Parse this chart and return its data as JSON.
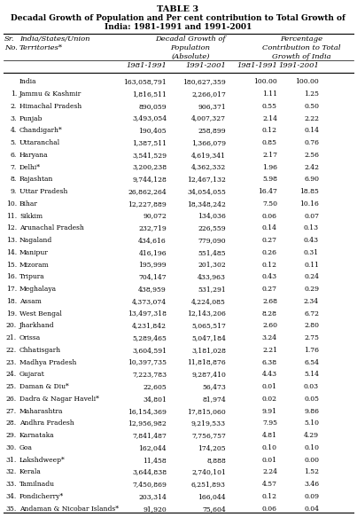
{
  "title_line1": "TABLE 3",
  "title_line2": "Decadal Growth of Population and Per cent contribution to Total Growth of",
  "title_line3": "India: 1981-1991 and 1991-2001",
  "sub_headers": [
    "1981-1991",
    "1991-2001",
    "1981-1991",
    "1991-2001"
  ],
  "rows": [
    [
      "",
      "India",
      "163,058,791",
      "180,627,359",
      "100.00",
      "100.00"
    ],
    [
      "1.",
      "Jammu & Kashmir",
      "1,816,511",
      "2,266,017",
      "1.11",
      "1.25"
    ],
    [
      "2.",
      "Himachal Pradesh",
      "890,059",
      "906,371",
      "0.55",
      "0.50"
    ],
    [
      "3.",
      "Punjab",
      "3,493,054",
      "4,007,327",
      "2.14",
      "2.22"
    ],
    [
      "4.",
      "Chandigarh*",
      "190,405",
      "258,899",
      "0.12",
      "0.14"
    ],
    [
      "5.",
      "Uttaranchal",
      "1,387,511",
      "1,366,079",
      "0.85",
      "0.76"
    ],
    [
      "6.",
      "Haryana",
      "3,541,529",
      "4,619,341",
      "2.17",
      "2.56"
    ],
    [
      "7.",
      "Delhi*",
      "3,200,238",
      "4,362,332",
      "1.96",
      "2.42"
    ],
    [
      "8.",
      "Rajashtan",
      "9,744,128",
      "12,467,132",
      "5.98",
      "6.90"
    ],
    [
      "9.",
      "Uttar Pradesh",
      "26,862,264",
      "34,054,055",
      "16.47",
      "18.85"
    ],
    [
      "10.",
      "Bihar",
      "12,227,889",
      "18,348,242",
      "7.50",
      "10.16"
    ],
    [
      "11.",
      "Sikkim",
      "90,072",
      "134,036",
      "0.06",
      "0.07"
    ],
    [
      "12.",
      "Arunachal Pradesh",
      "232,719",
      "226,559",
      "0.14",
      "0.13"
    ],
    [
      "13.",
      "Nagaland",
      "434,616",
      "779,090",
      "0.27",
      "0.43"
    ],
    [
      "14.",
      "Manipur",
      "416,196",
      "551,485",
      "0.26",
      "0.31"
    ],
    [
      "15.",
      "Mizoram",
      "195,999",
      "201,302",
      "0.12",
      "0.11"
    ],
    [
      "16.",
      "Tripura",
      "704,147",
      "433,963",
      "0.43",
      "0.24"
    ],
    [
      "17.",
      "Meghalaya",
      "438,959",
      "531,291",
      "0.27",
      "0.29"
    ],
    [
      "18.",
      "Assam",
      "4,373,074",
      "4,224,085",
      "2.68",
      "2.34"
    ],
    [
      "19.",
      "West Bengal",
      "13,497,318",
      "12,143,206",
      "8.28",
      "6.72"
    ],
    [
      "20.",
      "Jharkhand",
      "4,231,842",
      "5,065,517",
      "2.60",
      "2.80"
    ],
    [
      "21.",
      "Orissa",
      "5,289,465",
      "5,047,184",
      "3.24",
      "2.75"
    ],
    [
      "22.",
      "Chhatisgarh",
      "3,604,591",
      "3,181,028",
      "2.21",
      "1.76"
    ],
    [
      "23.",
      "Madhya Pradesh",
      "10,397,735",
      "11,818,876",
      "6.38",
      "6.54"
    ],
    [
      "24.",
      "Gujarat",
      "7,223,783",
      "9,287,410",
      "4.43",
      "5.14"
    ],
    [
      "25.",
      "Daman & Diu*",
      "22,605",
      "56,473",
      "0.01",
      "0.03"
    ],
    [
      "26.",
      "Dadra & Nagar Haveli*",
      "34,801",
      "81,974",
      "0.02",
      "0.05"
    ],
    [
      "27.",
      "Maharashtra",
      "16,154,369",
      "17,815,060",
      "9.91",
      "9.86"
    ],
    [
      "28.",
      "Andhra Pradesh",
      "12,956,982",
      "9,219,533",
      "7.95",
      "5.10"
    ],
    [
      "29.",
      "Karnataka",
      "7,841,487",
      "7,756,757",
      "4.81",
      "4.29"
    ],
    [
      "30.",
      "Goa",
      "162,044",
      "174,205",
      "0.10",
      "0.10"
    ],
    [
      "31.",
      "Lakshdweep*",
      "11,458",
      "8,888",
      "0.01",
      "0.00"
    ],
    [
      "32.",
      "Kerala",
      "3,644,838",
      "2,740,101",
      "2.24",
      "1.52"
    ],
    [
      "33.",
      "Tamilnadu",
      "7,450,869",
      "6,251,893",
      "4.57",
      "3.46"
    ],
    [
      "34.",
      "Pondicherry*",
      "203,314",
      "166,044",
      "0.12",
      "0.09"
    ],
    [
      "35.",
      "Andaman & Nicobar Islands*",
      "91,920",
      "75,604",
      "0.06",
      "0.04"
    ]
  ],
  "bg_color": "#ffffff",
  "text_color": "#000000",
  "font_size": 5.5,
  "title_font_size": 7.0,
  "header_font_size": 6.0
}
